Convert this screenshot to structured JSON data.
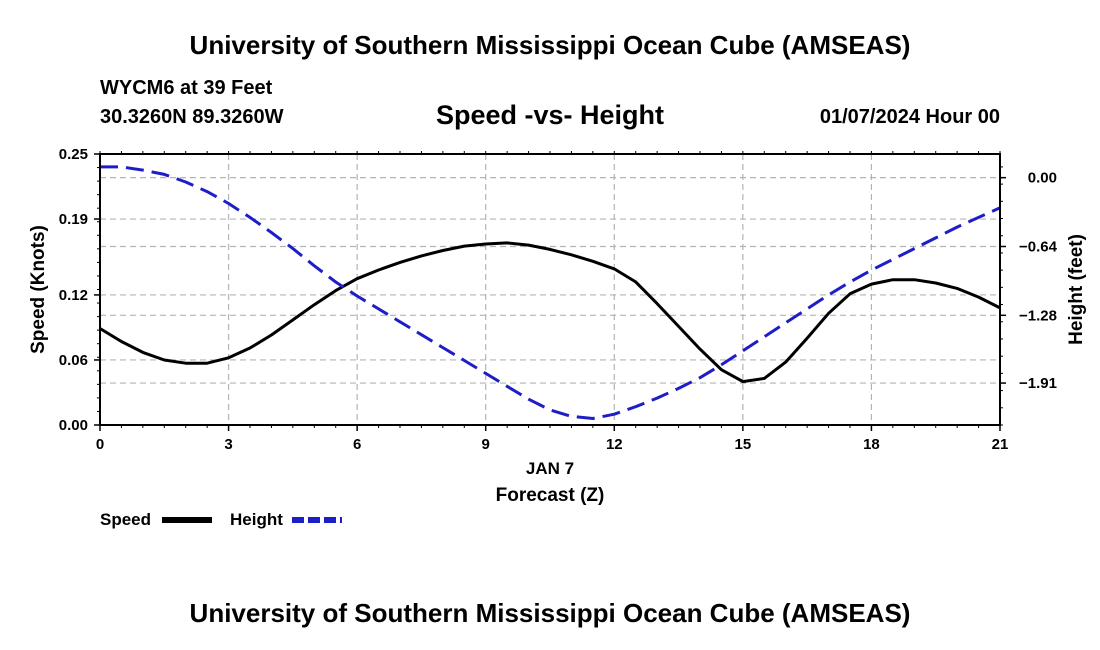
{
  "header": {
    "title": "University of Southern Mississippi Ocean Cube (AMSEAS)",
    "station": "WYCM6 at 39 Feet",
    "coords": "30.3260N  89.3260W",
    "subtitle": "Speed -vs- Height",
    "datetime": "01/07/2024 Hour 00"
  },
  "footer": {
    "title": "University of Southern Mississippi Ocean Cube (AMSEAS)"
  },
  "chart_data": {
    "type": "line",
    "xlabel": "Forecast (Z)",
    "xdate": "JAN 7",
    "ylabel": "Speed (Knots)",
    "y2label": "Height (feet)",
    "xlim": [
      0,
      21
    ],
    "ylim": [
      0,
      0.25
    ],
    "y2lim": [
      -2.3,
      0.22
    ],
    "grid": true,
    "xticks": [
      0,
      3,
      6,
      9,
      12,
      15,
      18,
      21
    ],
    "xtick_labels": [
      "0",
      "3",
      "6",
      "9",
      "12",
      "15",
      "18",
      "21"
    ],
    "yticks": [
      0,
      0.06,
      0.12,
      0.19,
      0.25
    ],
    "ytick_labels": [
      "0.00",
      "0.06",
      "0.12",
      "0.19",
      "0.25"
    ],
    "y2ticks": [
      0,
      -0.64,
      -1.28,
      -1.91
    ],
    "y2tick_labels": [
      "0.00",
      "−0.64",
      "−1.28",
      "−1.91"
    ],
    "series": [
      {
        "name": "Speed",
        "axis": "left",
        "color": "#000000",
        "style": "solid",
        "x": [
          0,
          0.5,
          1,
          1.5,
          2,
          2.5,
          3,
          3.5,
          4,
          4.5,
          5,
          5.5,
          6,
          6.5,
          7,
          7.5,
          8,
          8.5,
          9,
          9.5,
          10,
          10.5,
          11,
          11.5,
          12,
          12.5,
          13,
          13.5,
          14,
          14.5,
          15,
          15.5,
          16,
          16.5,
          17,
          17.5,
          18,
          18.5,
          19,
          19.5,
          20,
          20.5,
          21
        ],
        "values": [
          0.089,
          0.077,
          0.067,
          0.06,
          0.057,
          0.057,
          0.062,
          0.071,
          0.083,
          0.097,
          0.111,
          0.124,
          0.135,
          0.143,
          0.15,
          0.156,
          0.161,
          0.165,
          0.167,
          0.168,
          0.166,
          0.162,
          0.157,
          0.151,
          0.144,
          0.132,
          0.112,
          0.091,
          0.07,
          0.051,
          0.04,
          0.043,
          0.058,
          0.08,
          0.103,
          0.121,
          0.13,
          0.134,
          0.134,
          0.131,
          0.126,
          0.118,
          0.108
        ]
      },
      {
        "name": "Height",
        "axis": "right",
        "color": "#1e1ec8",
        "style": "dashed",
        "x": [
          0,
          0.5,
          1,
          1.5,
          2,
          2.5,
          3,
          3.5,
          4,
          4.5,
          5,
          5.5,
          6,
          6.5,
          7,
          7.5,
          8,
          8.5,
          9,
          9.5,
          10,
          10.5,
          11,
          11.5,
          12,
          12.5,
          13,
          13.5,
          14,
          14.5,
          15,
          15.5,
          16,
          16.5,
          17,
          17.5,
          18,
          18.5,
          19,
          19.5,
          20,
          20.5,
          21
        ],
        "values": [
          0.1,
          0.1,
          0.07,
          0.03,
          -0.04,
          -0.13,
          -0.24,
          -0.37,
          -0.51,
          -0.66,
          -0.82,
          -0.97,
          -1.1,
          -1.22,
          -1.34,
          -1.46,
          -1.58,
          -1.7,
          -1.82,
          -1.94,
          -2.06,
          -2.16,
          -2.22,
          -2.24,
          -2.2,
          -2.13,
          -2.05,
          -1.96,
          -1.86,
          -1.74,
          -1.61,
          -1.48,
          -1.35,
          -1.22,
          -1.09,
          -0.97,
          -0.86,
          -0.76,
          -0.66,
          -0.56,
          -0.46,
          -0.37,
          -0.28
        ]
      }
    ]
  }
}
